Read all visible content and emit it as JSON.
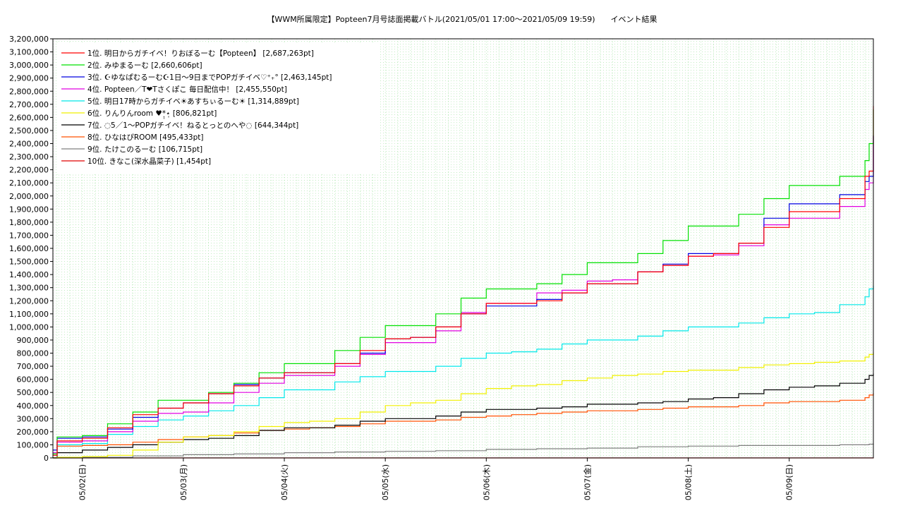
{
  "chart_data": {
    "type": "line",
    "title": "【WWM所属限定】Popteen7月号誌面掲載バトル(2021/05/01 17:00〜2021/05/09 19:59)　　イベント結果",
    "ylim": [
      0,
      3200000
    ],
    "x_range": [
      "2021-05-01 17:00",
      "2021-05-09 20:00"
    ],
    "y_tick_labels": [
      "0",
      "100,000",
      "200,000",
      "300,000",
      "400,000",
      "500,000",
      "600,000",
      "700,000",
      "800,000",
      "900,000",
      "1,000,000",
      "1,100,000",
      "1,200,000",
      "1,300,000",
      "1,400,000",
      "1,500,000",
      "1,600,000",
      "1,700,000",
      "1,800,000",
      "1,900,000",
      "2,000,000",
      "2,100,000",
      "2,200,000",
      "2,300,000",
      "2,400,000",
      "2,500,000",
      "2,600,000",
      "2,700,000",
      "2,800,000",
      "2,900,000",
      "3,000,000",
      "3,100,000",
      "3,200,000"
    ],
    "x_ticks": [
      {
        "label": "05/02(日)",
        "at": "2021-05-02 00:00"
      },
      {
        "label": "05/03(月)",
        "at": "2021-05-03 00:00"
      },
      {
        "label": "05/04(火)",
        "at": "2021-05-04 00:00"
      },
      {
        "label": "05/05(水)",
        "at": "2021-05-05 00:00"
      },
      {
        "label": "05/06(木)",
        "at": "2021-05-06 00:00"
      },
      {
        "label": "05/07(金)",
        "at": "2021-05-07 00:00"
      },
      {
        "label": "05/08(土)",
        "at": "2021-05-08 00:00"
      },
      {
        "label": "05/09(日)",
        "at": "2021-05-09 00:00"
      }
    ],
    "grid": true,
    "legend_position": "top-left",
    "series": [
      {
        "name": "1位. 明日からガチイベ！りおぼるーむ【Popteen】 [2,687,263pt]",
        "color": "#ff0000",
        "x": [
          "2021-05-01 17:00",
          "2021-05-01 18:00",
          "2021-05-02 00:00",
          "2021-05-02 06:00",
          "2021-05-02 12:00",
          "2021-05-02 18:00",
          "2021-05-03 00:00",
          "2021-05-03 06:00",
          "2021-05-03 12:00",
          "2021-05-03 18:00",
          "2021-05-04 00:00",
          "2021-05-04 06:00",
          "2021-05-04 12:00",
          "2021-05-04 18:00",
          "2021-05-05 00:00",
          "2021-05-05 06:00",
          "2021-05-05 12:00",
          "2021-05-05 18:00",
          "2021-05-06 00:00",
          "2021-05-06 06:00",
          "2021-05-06 12:00",
          "2021-05-06 18:00",
          "2021-05-07 00:00",
          "2021-05-07 06:00",
          "2021-05-07 12:00",
          "2021-05-07 18:00",
          "2021-05-08 00:00",
          "2021-05-08 06:00",
          "2021-05-08 12:00",
          "2021-05-08 18:00",
          "2021-05-09 00:00",
          "2021-05-09 06:00",
          "2021-05-09 12:00",
          "2021-05-09 18:00",
          "2021-05-09 19:00",
          "2021-05-09 20:00"
        ],
        "y": [
          20000,
          130000,
          150000,
          230000,
          330000,
          380000,
          420000,
          490000,
          550000,
          610000,
          650000,
          650000,
          720000,
          820000,
          910000,
          920000,
          1000000,
          1100000,
          1180000,
          1180000,
          1200000,
          1260000,
          1330000,
          1330000,
          1420000,
          1470000,
          1540000,
          1560000,
          1640000,
          1760000,
          1880000,
          1880000,
          1980000,
          2150000,
          2190000,
          2687263
        ]
      },
      {
        "name": "2位. みゆまるーむ [2,660,606pt]",
        "color": "#00e000",
        "x": [
          "2021-05-01 17:00",
          "2021-05-01 18:00",
          "2021-05-02 00:00",
          "2021-05-02 06:00",
          "2021-05-02 12:00",
          "2021-05-02 18:00",
          "2021-05-03 00:00",
          "2021-05-03 06:00",
          "2021-05-03 12:00",
          "2021-05-03 18:00",
          "2021-05-04 00:00",
          "2021-05-04 06:00",
          "2021-05-04 12:00",
          "2021-05-04 18:00",
          "2021-05-05 00:00",
          "2021-05-05 06:00",
          "2021-05-05 12:00",
          "2021-05-05 18:00",
          "2021-05-06 00:00",
          "2021-05-06 06:00",
          "2021-05-06 12:00",
          "2021-05-06 18:00",
          "2021-05-07 00:00",
          "2021-05-07 06:00",
          "2021-05-07 12:00",
          "2021-05-07 18:00",
          "2021-05-08 00:00",
          "2021-05-08 06:00",
          "2021-05-08 12:00",
          "2021-05-08 18:00",
          "2021-05-09 00:00",
          "2021-05-09 06:00",
          "2021-05-09 12:00",
          "2021-05-09 18:00",
          "2021-05-09 19:00",
          "2021-05-09 20:00"
        ],
        "y": [
          30000,
          160000,
          170000,
          260000,
          350000,
          440000,
          440000,
          500000,
          570000,
          650000,
          720000,
          720000,
          820000,
          920000,
          1010000,
          1010000,
          1100000,
          1220000,
          1290000,
          1290000,
          1330000,
          1400000,
          1490000,
          1490000,
          1560000,
          1660000,
          1770000,
          1770000,
          1860000,
          1980000,
          2080000,
          2080000,
          2150000,
          2270000,
          2400000,
          2660606
        ]
      },
      {
        "name": "3位. ☪ゆなぱむるーむ☪1日〜9日までPOPガチイベ♡⁺₊° [2,463,145pt]",
        "color": "#0000e0",
        "x": [
          "2021-05-01 17:00",
          "2021-05-01 18:00",
          "2021-05-02 00:00",
          "2021-05-02 06:00",
          "2021-05-02 12:00",
          "2021-05-02 18:00",
          "2021-05-03 00:00",
          "2021-05-03 06:00",
          "2021-05-03 12:00",
          "2021-05-03 18:00",
          "2021-05-04 00:00",
          "2021-05-04 06:00",
          "2021-05-04 12:00",
          "2021-05-04 18:00",
          "2021-05-05 00:00",
          "2021-05-05 06:00",
          "2021-05-05 12:00",
          "2021-05-05 18:00",
          "2021-05-06 00:00",
          "2021-05-06 06:00",
          "2021-05-06 12:00",
          "2021-05-06 18:00",
          "2021-05-07 00:00",
          "2021-05-07 06:00",
          "2021-05-07 12:00",
          "2021-05-07 18:00",
          "2021-05-08 00:00",
          "2021-05-08 06:00",
          "2021-05-08 12:00",
          "2021-05-08 18:00",
          "2021-05-09 00:00",
          "2021-05-09 06:00",
          "2021-05-09 12:00",
          "2021-05-09 18:00",
          "2021-05-09 19:00",
          "2021-05-09 20:00"
        ],
        "y": [
          60000,
          150000,
          160000,
          220000,
          310000,
          380000,
          420000,
          490000,
          560000,
          610000,
          650000,
          650000,
          720000,
          800000,
          910000,
          920000,
          1000000,
          1100000,
          1160000,
          1160000,
          1210000,
          1260000,
          1330000,
          1330000,
          1420000,
          1480000,
          1560000,
          1560000,
          1640000,
          1830000,
          1940000,
          1940000,
          2010000,
          2110000,
          2150000,
          2463145
        ]
      },
      {
        "name": "4位. Popteen／T❤Tさくぽこ 毎日配信中！ [2,455,550pt]",
        "color": "#e000e0",
        "x": [
          "2021-05-01 17:00",
          "2021-05-01 18:00",
          "2021-05-02 00:00",
          "2021-05-02 06:00",
          "2021-05-02 12:00",
          "2021-05-02 18:00",
          "2021-05-03 00:00",
          "2021-05-03 06:00",
          "2021-05-03 12:00",
          "2021-05-03 18:00",
          "2021-05-04 00:00",
          "2021-05-04 06:00",
          "2021-05-04 12:00",
          "2021-05-04 18:00",
          "2021-05-05 00:00",
          "2021-05-05 06:00",
          "2021-05-05 12:00",
          "2021-05-05 18:00",
          "2021-05-06 00:00",
          "2021-05-06 06:00",
          "2021-05-06 12:00",
          "2021-05-06 18:00",
          "2021-05-07 00:00",
          "2021-05-07 06:00",
          "2021-05-07 12:00",
          "2021-05-07 18:00",
          "2021-05-08 00:00",
          "2021-05-08 06:00",
          "2021-05-08 12:00",
          "2021-05-08 18:00",
          "2021-05-09 00:00",
          "2021-05-09 06:00",
          "2021-05-09 12:00",
          "2021-05-09 18:00",
          "2021-05-09 19:00",
          "2021-05-09 20:00"
        ],
        "y": [
          40000,
          120000,
          130000,
          200000,
          280000,
          340000,
          350000,
          420000,
          500000,
          570000,
          630000,
          630000,
          700000,
          790000,
          880000,
          880000,
          970000,
          1110000,
          1180000,
          1180000,
          1260000,
          1280000,
          1350000,
          1360000,
          1420000,
          1470000,
          1540000,
          1550000,
          1620000,
          1780000,
          1830000,
          1830000,
          1920000,
          2050000,
          2100000,
          2455550
        ]
      },
      {
        "name": "5位. 明日17時からガチイベ☀あすちぃるーむ☀ [1,314,889pt]",
        "color": "#00e8e8",
        "x": [
          "2021-05-01 17:00",
          "2021-05-01 18:00",
          "2021-05-02 00:00",
          "2021-05-02 06:00",
          "2021-05-02 12:00",
          "2021-05-02 18:00",
          "2021-05-03 00:00",
          "2021-05-03 06:00",
          "2021-05-03 12:00",
          "2021-05-03 18:00",
          "2021-05-04 00:00",
          "2021-05-04 06:00",
          "2021-05-04 12:00",
          "2021-05-04 18:00",
          "2021-05-05 00:00",
          "2021-05-05 06:00",
          "2021-05-05 12:00",
          "2021-05-05 18:00",
          "2021-05-06 00:00",
          "2021-05-06 06:00",
          "2021-05-06 12:00",
          "2021-05-06 18:00",
          "2021-05-07 00:00",
          "2021-05-07 06:00",
          "2021-05-07 12:00",
          "2021-05-07 18:00",
          "2021-05-08 00:00",
          "2021-05-08 06:00",
          "2021-05-08 12:00",
          "2021-05-08 18:00",
          "2021-05-09 00:00",
          "2021-05-09 06:00",
          "2021-05-09 12:00",
          "2021-05-09 18:00",
          "2021-05-09 19:00",
          "2021-05-09 20:00"
        ],
        "y": [
          20000,
          100000,
          110000,
          180000,
          240000,
          290000,
          320000,
          360000,
          400000,
          460000,
          520000,
          520000,
          580000,
          620000,
          660000,
          660000,
          700000,
          760000,
          800000,
          810000,
          830000,
          870000,
          900000,
          900000,
          930000,
          970000,
          1000000,
          1000000,
          1030000,
          1070000,
          1100000,
          1110000,
          1170000,
          1230000,
          1290000,
          1314889
        ]
      },
      {
        "name": "6位. りんりんroom ♥*̣̩⋆̩ [806,821pt]",
        "color": "#f0f000",
        "x": [
          "2021-05-01 17:00",
          "2021-05-01 18:00",
          "2021-05-02 00:00",
          "2021-05-02 06:00",
          "2021-05-02 12:00",
          "2021-05-02 18:00",
          "2021-05-03 00:00",
          "2021-05-03 06:00",
          "2021-05-03 12:00",
          "2021-05-03 18:00",
          "2021-05-04 00:00",
          "2021-05-04 06:00",
          "2021-05-04 12:00",
          "2021-05-04 18:00",
          "2021-05-05 00:00",
          "2021-05-05 06:00",
          "2021-05-05 12:00",
          "2021-05-05 18:00",
          "2021-05-06 00:00",
          "2021-05-06 06:00",
          "2021-05-06 12:00",
          "2021-05-06 18:00",
          "2021-05-07 00:00",
          "2021-05-07 06:00",
          "2021-05-07 12:00",
          "2021-05-07 18:00",
          "2021-05-08 00:00",
          "2021-05-08 06:00",
          "2021-05-08 12:00",
          "2021-05-08 18:00",
          "2021-05-09 00:00",
          "2021-05-09 06:00",
          "2021-05-09 12:00",
          "2021-05-09 18:00",
          "2021-05-09 19:00",
          "2021-05-09 20:00"
        ],
        "y": [
          0,
          5000,
          10000,
          20000,
          60000,
          120000,
          160000,
          170000,
          200000,
          240000,
          270000,
          280000,
          300000,
          350000,
          400000,
          420000,
          440000,
          490000,
          530000,
          550000,
          560000,
          590000,
          610000,
          630000,
          640000,
          660000,
          670000,
          670000,
          690000,
          710000,
          720000,
          730000,
          740000,
          770000,
          790000,
          806821
        ]
      },
      {
        "name": "7位. ◌5／1〜POPガチイベ！ねるとっとのへや◌ [644,344pt]",
        "color": "#000000",
        "x": [
          "2021-05-01 17:00",
          "2021-05-01 18:00",
          "2021-05-02 00:00",
          "2021-05-02 06:00",
          "2021-05-02 12:00",
          "2021-05-02 18:00",
          "2021-05-03 00:00",
          "2021-05-03 06:00",
          "2021-05-03 12:00",
          "2021-05-03 18:00",
          "2021-05-04 00:00",
          "2021-05-04 06:00",
          "2021-05-04 12:00",
          "2021-05-04 18:00",
          "2021-05-05 00:00",
          "2021-05-05 06:00",
          "2021-05-05 12:00",
          "2021-05-05 18:00",
          "2021-05-06 00:00",
          "2021-05-06 06:00",
          "2021-05-06 12:00",
          "2021-05-06 18:00",
          "2021-05-07 00:00",
          "2021-05-07 06:00",
          "2021-05-07 12:00",
          "2021-05-07 18:00",
          "2021-05-08 00:00",
          "2021-05-08 06:00",
          "2021-05-08 12:00",
          "2021-05-08 18:00",
          "2021-05-09 00:00",
          "2021-05-09 06:00",
          "2021-05-09 12:00",
          "2021-05-09 18:00",
          "2021-05-09 19:00",
          "2021-05-09 20:00"
        ],
        "y": [
          0,
          40000,
          60000,
          80000,
          100000,
          120000,
          140000,
          150000,
          170000,
          210000,
          230000,
          230000,
          250000,
          280000,
          300000,
          300000,
          320000,
          350000,
          370000,
          370000,
          380000,
          390000,
          410000,
          410000,
          420000,
          430000,
          450000,
          460000,
          490000,
          520000,
          540000,
          550000,
          570000,
          600000,
          630000,
          644344
        ]
      },
      {
        "name": "8位. ひなはぴROOM [495,433pt]",
        "color": "#ff5000",
        "x": [
          "2021-05-01 17:00",
          "2021-05-01 18:00",
          "2021-05-02 00:00",
          "2021-05-02 06:00",
          "2021-05-02 12:00",
          "2021-05-02 18:00",
          "2021-05-03 00:00",
          "2021-05-03 06:00",
          "2021-05-03 12:00",
          "2021-05-03 18:00",
          "2021-05-04 00:00",
          "2021-05-04 06:00",
          "2021-05-04 12:00",
          "2021-05-04 18:00",
          "2021-05-05 00:00",
          "2021-05-05 06:00",
          "2021-05-05 12:00",
          "2021-05-05 18:00",
          "2021-05-06 00:00",
          "2021-05-06 06:00",
          "2021-05-06 12:00",
          "2021-05-06 18:00",
          "2021-05-07 00:00",
          "2021-05-07 06:00",
          "2021-05-07 12:00",
          "2021-05-07 18:00",
          "2021-05-08 00:00",
          "2021-05-08 06:00",
          "2021-05-08 12:00",
          "2021-05-08 18:00",
          "2021-05-09 00:00",
          "2021-05-09 06:00",
          "2021-05-09 12:00",
          "2021-05-09 18:00",
          "2021-05-09 19:00",
          "2021-05-09 20:00"
        ],
        "y": [
          20000,
          90000,
          95000,
          100000,
          120000,
          140000,
          160000,
          170000,
          190000,
          210000,
          220000,
          230000,
          240000,
          260000,
          280000,
          280000,
          290000,
          310000,
          320000,
          330000,
          340000,
          350000,
          360000,
          360000,
          370000,
          380000,
          390000,
          390000,
          400000,
          420000,
          430000,
          430000,
          440000,
          460000,
          480000,
          495433
        ]
      },
      {
        "name": "9位. たけこのるーむ [106,715pt]",
        "color": "#808080",
        "x": [
          "2021-05-01 17:00",
          "2021-05-02 00:00",
          "2021-05-02 12:00",
          "2021-05-03 00:00",
          "2021-05-03 12:00",
          "2021-05-04 00:00",
          "2021-05-04 12:00",
          "2021-05-05 00:00",
          "2021-05-05 12:00",
          "2021-05-06 00:00",
          "2021-05-06 12:00",
          "2021-05-07 00:00",
          "2021-05-07 12:00",
          "2021-05-08 00:00",
          "2021-05-08 12:00",
          "2021-05-09 00:00",
          "2021-05-09 12:00",
          "2021-05-09 19:00",
          "2021-05-09 20:00"
        ],
        "y": [
          0,
          5000,
          15000,
          25000,
          30000,
          40000,
          45000,
          50000,
          55000,
          65000,
          70000,
          75000,
          85000,
          90000,
          95000,
          95000,
          100000,
          105000,
          106715
        ]
      },
      {
        "name": "10位. きなこ(深水晶菜子) [1,454pt]",
        "color": "#e00000",
        "x": [
          "2021-05-01 17:00",
          "2021-05-09 20:00"
        ],
        "y": [
          0,
          1454
        ]
      }
    ]
  }
}
